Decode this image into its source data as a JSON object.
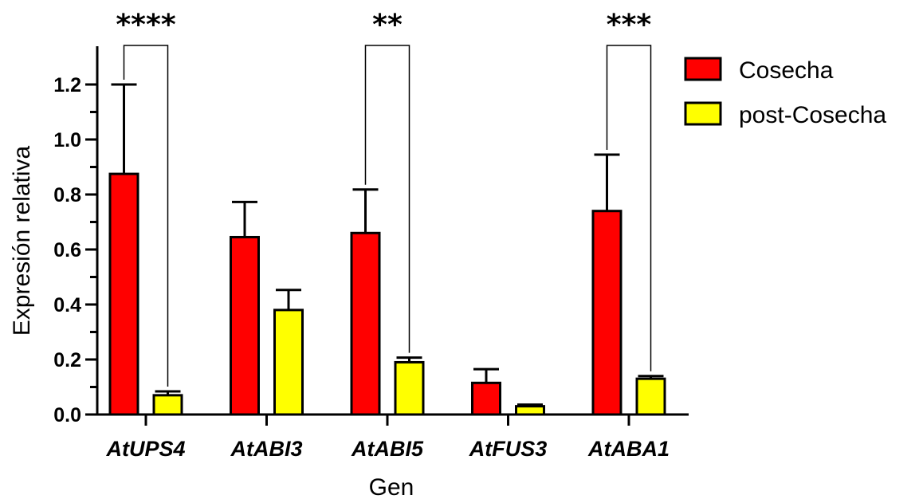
{
  "chart_data": {
    "type": "bar",
    "xlabel": "Gen",
    "ylabel": "Expresión relativa",
    "ylim": [
      0,
      1.2
    ],
    "yticks": [
      "0.0",
      "0.2",
      "0.4",
      "0.6",
      "0.8",
      "1.0",
      "1.2"
    ],
    "categories": [
      "AtUPS4",
      "AtABI3",
      "AtABI5",
      "AtFUS3",
      "AtABA1"
    ],
    "series": [
      {
        "name": "Cosecha",
        "color": "#ff0000",
        "values": [
          0.875,
          0.645,
          0.66,
          0.115,
          0.74
        ],
        "errors": [
          0.325,
          0.128,
          0.158,
          0.05,
          0.205
        ]
      },
      {
        "name": "post-Cosecha",
        "color": "#ffff00",
        "values": [
          0.07,
          0.38,
          0.19,
          0.03,
          0.13
        ],
        "errors": [
          0.014,
          0.073,
          0.017,
          0.006,
          0.01
        ]
      }
    ],
    "significance": [
      {
        "category": "AtUPS4",
        "label": "****"
      },
      {
        "category": "AtABI5",
        "label": "**"
      },
      {
        "category": "AtABA1",
        "label": "***"
      }
    ],
    "legend": "top-right",
    "grid": false
  }
}
